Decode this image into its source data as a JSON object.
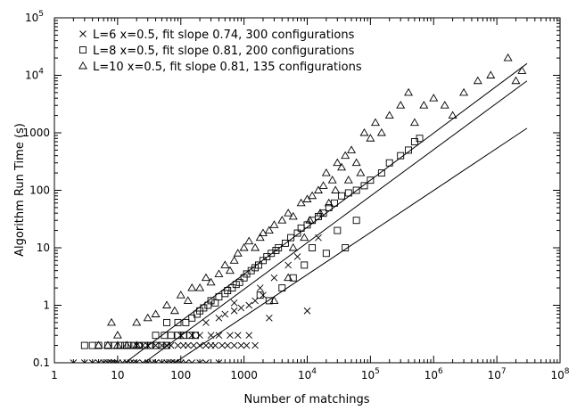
{
  "chart_data": {
    "type": "scatter",
    "title": "",
    "xlabel": "Number of matchings",
    "ylabel": "Algorithm Run Time (s)",
    "x_scale": "log",
    "y_scale": "log",
    "xlim": [
      1,
      100000000
    ],
    "ylim": [
      0.1,
      100000
    ],
    "x_ticks": [
      {
        "value": 1,
        "label": "1"
      },
      {
        "value": 10,
        "label": "10"
      },
      {
        "value": 100,
        "label": "100"
      },
      {
        "value": 1000,
        "label": "1000"
      },
      {
        "value": 10000,
        "base": "10",
        "exp": "4"
      },
      {
        "value": 100000,
        "base": "10",
        "exp": "5"
      },
      {
        "value": 1000000,
        "base": "10",
        "exp": "6"
      },
      {
        "value": 10000000,
        "base": "10",
        "exp": "7"
      },
      {
        "value": 100000000,
        "base": "10",
        "exp": "8"
      }
    ],
    "y_ticks": [
      {
        "value": 0.1,
        "label": "0.1"
      },
      {
        "value": 1,
        "label": "1"
      },
      {
        "value": 10,
        "label": "10"
      },
      {
        "value": 100,
        "label": "100"
      },
      {
        "value": 1000,
        "label": "1000"
      },
      {
        "value": 10000,
        "base": "10",
        "exp": "4"
      },
      {
        "value": 100000,
        "base": "10",
        "exp": "5"
      }
    ],
    "grid": false,
    "legend_position": "top-left",
    "series": [
      {
        "name": "L=6 x=0.5, fit slope 0.74, 300 configurations",
        "marker": "cross",
        "points": [
          [
            2,
            0.1
          ],
          [
            3,
            0.1
          ],
          [
            4,
            0.1
          ],
          [
            5,
            0.1
          ],
          [
            6,
            0.1
          ],
          [
            7,
            0.1
          ],
          [
            8,
            0.1
          ],
          [
            9,
            0.1
          ],
          [
            10,
            0.1
          ],
          [
            12,
            0.1
          ],
          [
            14,
            0.1
          ],
          [
            16,
            0.1
          ],
          [
            18,
            0.1
          ],
          [
            20,
            0.1
          ],
          [
            25,
            0.1
          ],
          [
            30,
            0.1
          ],
          [
            35,
            0.1
          ],
          [
            40,
            0.1
          ],
          [
            50,
            0.1
          ],
          [
            60,
            0.1
          ],
          [
            70,
            0.1
          ],
          [
            80,
            0.1
          ],
          [
            100,
            0.1
          ],
          [
            120,
            0.1
          ],
          [
            150,
            0.1
          ],
          [
            200,
            0.1
          ],
          [
            250,
            0.1
          ],
          [
            400,
            0.1
          ],
          [
            20,
            0.2
          ],
          [
            25,
            0.2
          ],
          [
            30,
            0.2
          ],
          [
            40,
            0.2
          ],
          [
            50,
            0.2
          ],
          [
            60,
            0.2
          ],
          [
            70,
            0.2
          ],
          [
            90,
            0.2
          ],
          [
            110,
            0.2
          ],
          [
            130,
            0.2
          ],
          [
            160,
            0.2
          ],
          [
            200,
            0.2
          ],
          [
            250,
            0.2
          ],
          [
            300,
            0.2
          ],
          [
            350,
            0.2
          ],
          [
            450,
            0.2
          ],
          [
            550,
            0.2
          ],
          [
            700,
            0.2
          ],
          [
            900,
            0.2
          ],
          [
            1100,
            0.2
          ],
          [
            1500,
            0.2
          ],
          [
            100,
            0.3
          ],
          [
            150,
            0.3
          ],
          [
            200,
            0.3
          ],
          [
            300,
            0.3
          ],
          [
            400,
            0.3
          ],
          [
            600,
            0.3
          ],
          [
            800,
            0.3
          ],
          [
            1200,
            0.3
          ],
          [
            250,
            0.5
          ],
          [
            400,
            0.6
          ],
          [
            500,
            0.7
          ],
          [
            700,
            0.8
          ],
          [
            900,
            0.9
          ],
          [
            1200,
            1.0
          ],
          [
            1500,
            1.2
          ],
          [
            2000,
            1.5
          ],
          [
            1800,
            2.0
          ],
          [
            3000,
            3.0
          ],
          [
            5000,
            5.0
          ],
          [
            7000,
            7.0
          ],
          [
            15000,
            15
          ],
          [
            10000,
            0.8
          ],
          [
            2500,
            0.6
          ],
          [
            700,
            1.1
          ]
        ]
      },
      {
        "name": "L=8 x=0.5, fit slope 0.81, 200 configurations",
        "marker": "square",
        "points": [
          [
            3,
            0.2
          ],
          [
            4,
            0.2
          ],
          [
            5,
            0.2
          ],
          [
            7,
            0.2
          ],
          [
            9,
            0.2
          ],
          [
            11,
            0.2
          ],
          [
            13,
            0.2
          ],
          [
            15,
            0.2
          ],
          [
            18,
            0.2
          ],
          [
            22,
            0.2
          ],
          [
            27,
            0.2
          ],
          [
            33,
            0.2
          ],
          [
            40,
            0.2
          ],
          [
            50,
            0.2
          ],
          [
            60,
            0.2
          ],
          [
            40,
            0.3
          ],
          [
            55,
            0.3
          ],
          [
            70,
            0.3
          ],
          [
            90,
            0.3
          ],
          [
            110,
            0.3
          ],
          [
            140,
            0.3
          ],
          [
            170,
            0.3
          ],
          [
            60,
            0.5
          ],
          [
            90,
            0.5
          ],
          [
            120,
            0.5
          ],
          [
            150,
            0.6
          ],
          [
            180,
            0.7
          ],
          [
            200,
            0.8
          ],
          [
            230,
            0.9
          ],
          [
            270,
            1.0
          ],
          [
            300,
            1.2
          ],
          [
            350,
            1.1
          ],
          [
            400,
            1.4
          ],
          [
            500,
            1.6
          ],
          [
            550,
            1.8
          ],
          [
            650,
            2.0
          ],
          [
            750,
            2.3
          ],
          [
            850,
            2.5
          ],
          [
            1000,
            3.0
          ],
          [
            1100,
            3.5
          ],
          [
            1300,
            4.0
          ],
          [
            1500,
            4.5
          ],
          [
            1700,
            5.0
          ],
          [
            2000,
            6.0
          ],
          [
            2300,
            7.0
          ],
          [
            2700,
            8.0
          ],
          [
            3200,
            9.0
          ],
          [
            3500,
            10
          ],
          [
            4500,
            12
          ],
          [
            5500,
            15
          ],
          [
            7000,
            18
          ],
          [
            8000,
            22
          ],
          [
            10000,
            25
          ],
          [
            12000,
            30
          ],
          [
            15000,
            35
          ],
          [
            18000,
            40
          ],
          [
            22000,
            50
          ],
          [
            27000,
            60
          ],
          [
            35000,
            80
          ],
          [
            45000,
            90
          ],
          [
            60000,
            100
          ],
          [
            80000,
            120
          ],
          [
            100000,
            150
          ],
          [
            150000,
            200
          ],
          [
            200000,
            300
          ],
          [
            300000,
            400
          ],
          [
            400000,
            500
          ],
          [
            500000,
            700
          ],
          [
            600000,
            800
          ],
          [
            1800,
            1.5
          ],
          [
            2500,
            1.2
          ],
          [
            4000,
            2.0
          ],
          [
            6000,
            3.0
          ],
          [
            9000,
            5.0
          ],
          [
            12000,
            10
          ],
          [
            20000,
            8
          ],
          [
            30000,
            20
          ],
          [
            40000,
            10
          ],
          [
            60000,
            30
          ]
        ]
      },
      {
        "name": "L=10 x=0.5, fit slope 0.81, 135 configurations",
        "marker": "triangle",
        "points": [
          [
            5,
            0.2
          ],
          [
            7,
            0.2
          ],
          [
            10,
            0.2
          ],
          [
            14,
            0.2
          ],
          [
            20,
            0.2
          ],
          [
            8,
            0.5
          ],
          [
            10,
            0.3
          ],
          [
            20,
            0.5
          ],
          [
            30,
            0.6
          ],
          [
            40,
            0.7
          ],
          [
            60,
            1.0
          ],
          [
            80,
            0.8
          ],
          [
            100,
            1.5
          ],
          [
            130,
            1.2
          ],
          [
            150,
            2.0
          ],
          [
            200,
            2.0
          ],
          [
            250,
            3.0
          ],
          [
            300,
            2.5
          ],
          [
            400,
            3.5
          ],
          [
            500,
            5.0
          ],
          [
            600,
            4.0
          ],
          [
            700,
            6.0
          ],
          [
            800,
            8.0
          ],
          [
            1000,
            10
          ],
          [
            1200,
            13
          ],
          [
            1500,
            10
          ],
          [
            1800,
            15
          ],
          [
            2000,
            18
          ],
          [
            2500,
            20
          ],
          [
            3000,
            25
          ],
          [
            4000,
            30
          ],
          [
            5000,
            40
          ],
          [
            6000,
            35
          ],
          [
            8000,
            60
          ],
          [
            10000,
            70
          ],
          [
            12000,
            80
          ],
          [
            15000,
            100
          ],
          [
            18000,
            120
          ],
          [
            20000,
            200
          ],
          [
            25000,
            150
          ],
          [
            30000,
            300
          ],
          [
            35000,
            250
          ],
          [
            40000,
            400
          ],
          [
            50000,
            500
          ],
          [
            60000,
            300
          ],
          [
            70000,
            200
          ],
          [
            80000,
            1000
          ],
          [
            100000,
            800
          ],
          [
            120000,
            1500
          ],
          [
            150000,
            1000
          ],
          [
            200000,
            2000
          ],
          [
            300000,
            3000
          ],
          [
            400000,
            5000
          ],
          [
            500000,
            1500
          ],
          [
            700000,
            3000
          ],
          [
            1000000,
            4000
          ],
          [
            1500000,
            3000
          ],
          [
            2000000,
            2000
          ],
          [
            3000000,
            5000
          ],
          [
            5000000,
            8000
          ],
          [
            8000000,
            10000
          ],
          [
            15000000,
            20000
          ],
          [
            20000000,
            8000
          ],
          [
            25000000,
            12000
          ],
          [
            3000,
            1.2
          ],
          [
            5000,
            3.0
          ],
          [
            6000,
            10
          ],
          [
            9000,
            15
          ],
          [
            11000,
            30
          ],
          [
            16000,
            40
          ],
          [
            22000,
            60
          ],
          [
            28000,
            100
          ],
          [
            45000,
            150
          ]
        ]
      }
    ],
    "fit_lines": [
      {
        "series": "L=6 x=0.5, fit slope 0.74, 300 configurations",
        "from": [
          40,
          0.06
        ],
        "to": [
          30000000,
          1200
        ]
      },
      {
        "series": "L=8 x=0.5, fit slope 0.81, 200 configurations",
        "from": [
          20,
          0.08
        ],
        "to": [
          30000000,
          8000
        ]
      },
      {
        "series": "L=10 x=0.5, fit slope 0.81, 135 configurations",
        "from": [
          10,
          0.08
        ],
        "to": [
          30000000,
          16000
        ]
      }
    ]
  }
}
